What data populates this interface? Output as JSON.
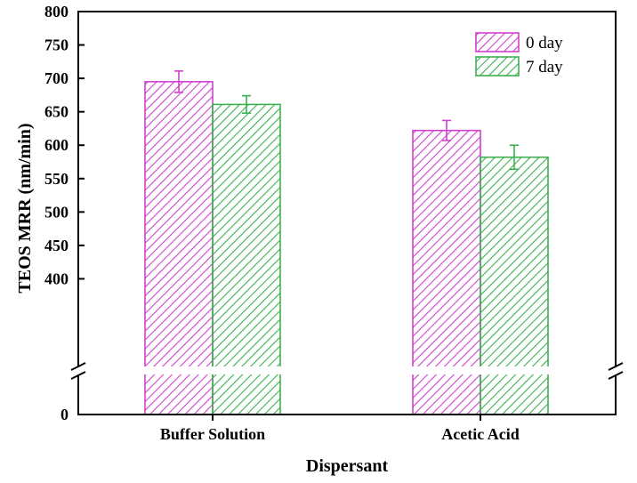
{
  "chart_data": {
    "type": "bar",
    "xlabel": "Dispersant",
    "ylabel": "TEOS MRR (nm/min)",
    "categories": [
      "Buffer Solution",
      "Acetic Acid"
    ],
    "series": [
      {
        "name": "0 day",
        "color": "#d040d0",
        "values": [
          695,
          622
        ],
        "errors": [
          16,
          15
        ]
      },
      {
        "name": "7 day",
        "color": "#3cb050",
        "values": [
          661,
          582
        ],
        "errors": [
          13,
          18
        ]
      }
    ],
    "ylim": [
      0,
      800
    ],
    "axis_break": [
      0,
      350
    ],
    "yticks": [
      {
        "value": 0,
        "label": "0"
      },
      {
        "value": 400,
        "label": "400"
      },
      {
        "value": 450,
        "label": "450"
      },
      {
        "value": 500,
        "label": "500"
      },
      {
        "value": 550,
        "label": "550"
      },
      {
        "value": 600,
        "label": "600"
      },
      {
        "value": 650,
        "label": "650"
      },
      {
        "value": 700,
        "label": "700"
      },
      {
        "value": 750,
        "label": "750"
      },
      {
        "value": 800,
        "label": "800"
      }
    ],
    "legend": [
      "0 day",
      "7 day"
    ],
    "legend_position": "top-right",
    "hatch": "diagonal"
  }
}
